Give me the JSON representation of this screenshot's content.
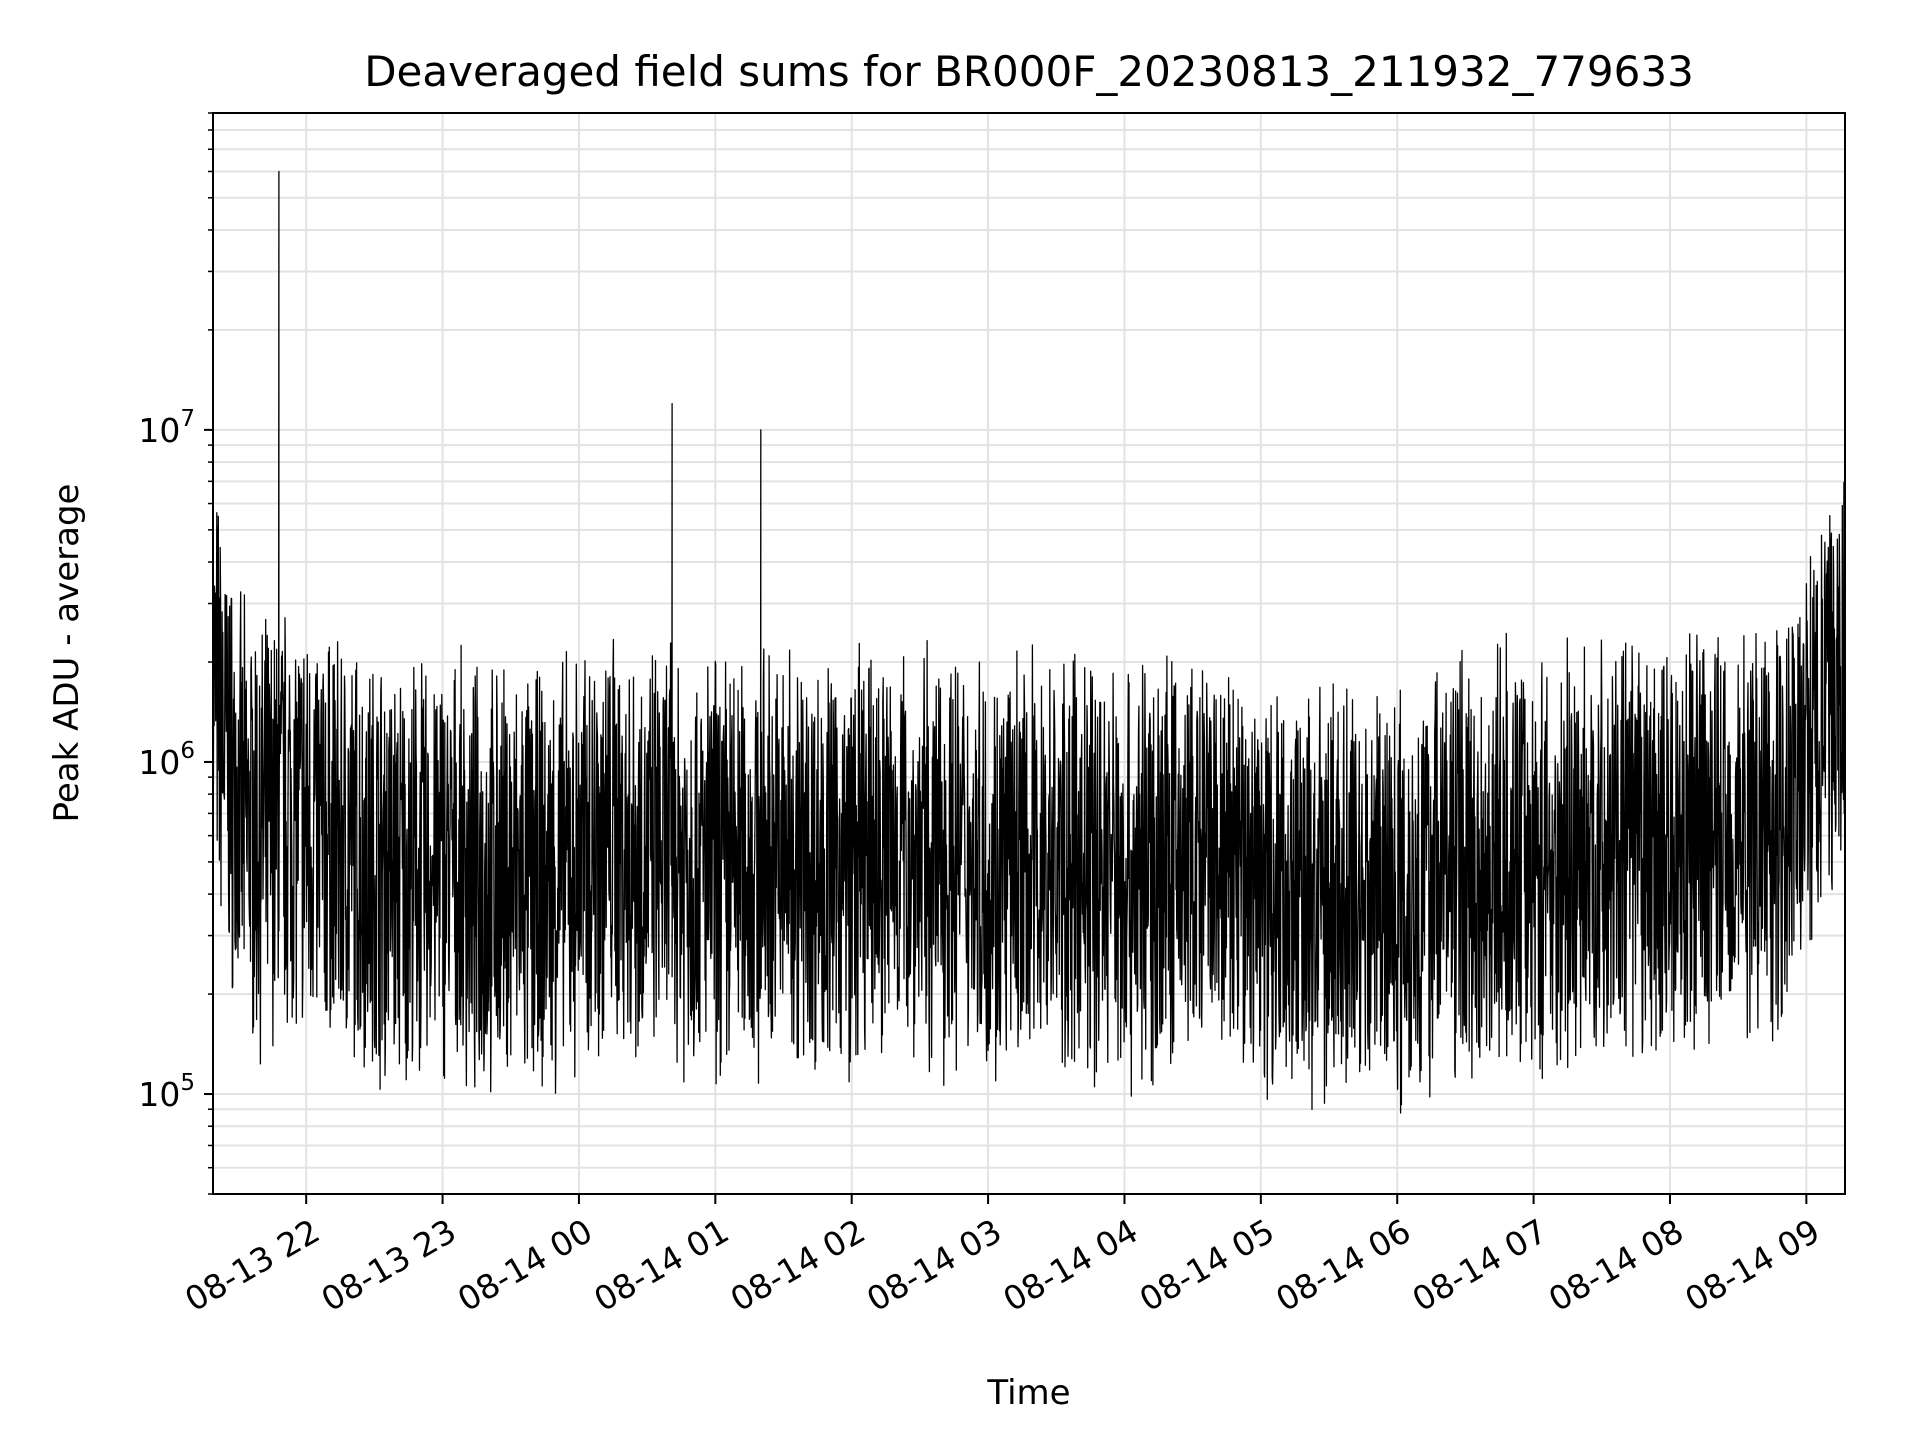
{
  "chart_data": {
    "type": "line",
    "title": "Deaveraged field sums for BR000F_20230813_211932_779633",
    "xlabel": "Time",
    "ylabel": "Peak ADU - average",
    "y_scale": "log",
    "ylim": [
      50000,
      90000000
    ],
    "xlim": [
      "2023-08-13 21:19",
      "2023-08-14 09:17"
    ],
    "x_tick_labels": [
      "08-13 22",
      "08-13 23",
      "08-14 00",
      "08-14 01",
      "08-14 02",
      "08-14 03",
      "08-14 04",
      "08-14 05",
      "08-14 06",
      "08-14 07",
      "08-14 08",
      "08-14 09"
    ],
    "y_ticks": [
      {
        "base": "10",
        "exp": "5"
      },
      {
        "base": "10",
        "exp": "6"
      },
      {
        "base": "10",
        "exp": "7"
      }
    ],
    "grid": true,
    "line_color": "#000000",
    "series": [
      {
        "x": [
          "2023-08-13 21:19",
          "2023-08-13 21:30",
          "2023-08-13 21:40",
          "2023-08-13 21:47",
          "2023-08-13 21:48",
          "2023-08-13 21:49",
          "2023-08-13 22:00",
          "2023-08-13 22:15",
          "2023-08-13 22:30",
          "2023-08-13 22:45",
          "2023-08-13 23:00",
          "2023-08-13 23:15",
          "2023-08-13 23:30",
          "2023-08-13 23:45",
          "2023-08-14 00:00",
          "2023-08-14 00:15",
          "2023-08-14 00:30",
          "2023-08-14 00:40",
          "2023-08-14 00:41",
          "2023-08-14 00:42",
          "2023-08-14 00:55",
          "2023-08-14 01:10",
          "2023-08-14 01:19",
          "2023-08-14 01:20",
          "2023-08-14 01:21",
          "2023-08-14 01:35",
          "2023-08-14 01:50",
          "2023-08-14 02:05",
          "2023-08-14 02:20",
          "2023-08-14 02:35",
          "2023-08-14 02:50",
          "2023-08-14 03:05",
          "2023-08-14 03:20",
          "2023-08-14 03:35",
          "2023-08-14 03:50",
          "2023-08-14 04:05",
          "2023-08-14 04:20",
          "2023-08-14 04:35",
          "2023-08-14 04:50",
          "2023-08-14 05:05",
          "2023-08-14 05:20",
          "2023-08-14 05:35",
          "2023-08-14 05:50",
          "2023-08-14 06:05",
          "2023-08-14 06:20",
          "2023-08-14 06:35",
          "2023-08-14 06:50",
          "2023-08-14 07:05",
          "2023-08-14 07:20",
          "2023-08-14 07:35",
          "2023-08-14 07:50",
          "2023-08-14 08:05",
          "2023-08-14 08:20",
          "2023-08-14 08:35",
          "2023-08-14 08:50",
          "2023-08-14 09:05",
          "2023-08-14 09:17"
        ],
        "y": [
          1800000,
          700000,
          600000,
          650000,
          60000000,
          700000,
          650000,
          550000,
          500000,
          450000,
          500000,
          420000,
          450000,
          420000,
          500000,
          600000,
          500000,
          550000,
          12000000,
          520000,
          480000,
          500000,
          480000,
          10000000,
          500000,
          520000,
          480000,
          500000,
          560000,
          500000,
          520000,
          450000,
          500000,
          470000,
          500000,
          460000,
          500000,
          480000,
          450000,
          430000,
          380000,
          400000,
          420000,
          400000,
          500000,
          480000,
          520000,
          480000,
          500000,
          540000,
          520000,
          560000,
          600000,
          650000,
          700000,
          1200000,
          2000000
        ]
      }
    ]
  }
}
